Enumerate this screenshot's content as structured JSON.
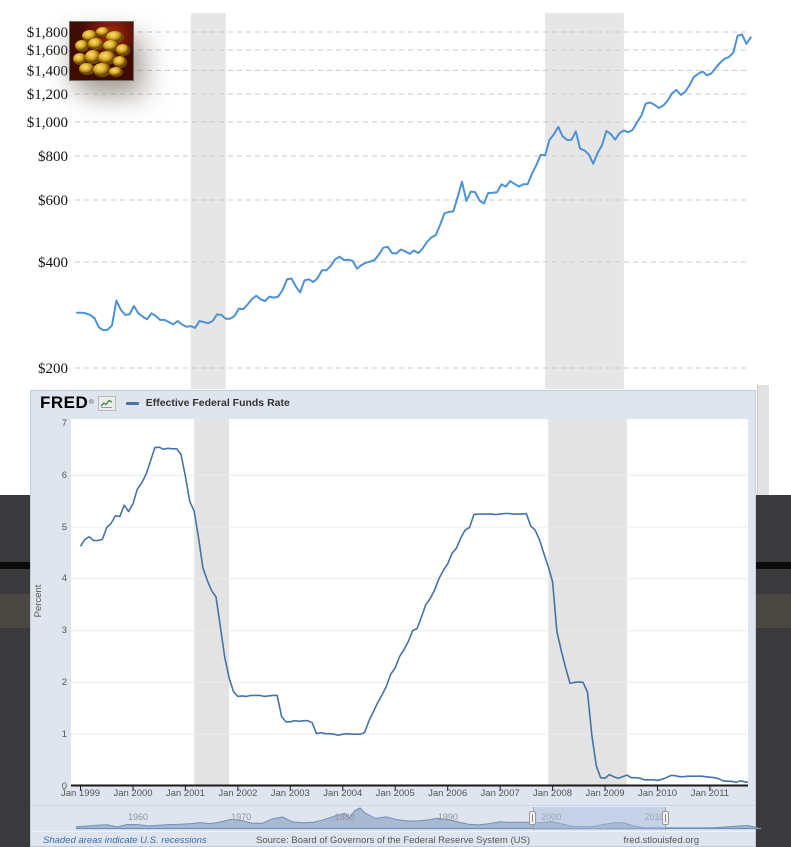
{
  "fred": {
    "logo": "FRED",
    "logo_reg": "®",
    "legend_label": "Effective Federal Funds Rate",
    "ylabel": "Percent",
    "footer": {
      "recession_note": "Shaded areas indicate U.S. recessions",
      "source": "Source: Board of Governors of the Federal Reserve System (US)",
      "site": "fred.stlouisfed.org"
    }
  },
  "colors": {
    "gold_line": "#4f91d6",
    "fred_line": "#4572a7",
    "recession_band_gold": "#e6e6e6",
    "recession_band_fred": "#e3e3e3",
    "gold_grid": "#c9c9c9",
    "fred_grid": "#ececec",
    "axis": "#1a1a1a",
    "panel_bg": "#dfe5ef",
    "selector_fill": "rgba(125,150,185,0.55)",
    "selector_line": "#6f8fb8",
    "logo_icon_line": "#3f8a3f"
  },
  "chart_data": [
    {
      "id": "gold_price",
      "type": "line",
      "description": "Gold price in US dollars per ounce, monthly, Jan 1999 - Nov 2011, log scale",
      "x_start_year": 1999,
      "x_step_months": 1,
      "y_scale": "log",
      "ylim": [
        200,
        2000
      ],
      "y_tick_labels": [
        "$1,800",
        "$1,600",
        "$1,400",
        "$1,200",
        "$1,000",
        "$800",
        "$600",
        "$400",
        "$200"
      ],
      "y_tick_values": [
        1800,
        1600,
        1400,
        1200,
        1000,
        800,
        600,
        400,
        200
      ],
      "grid": "dashed",
      "recessions": [
        [
          2001.167,
          2001.833
        ],
        [
          2007.917,
          2009.417
        ]
      ],
      "values": [
        287,
        287,
        286,
        283,
        277,
        261,
        256,
        257,
        264,
        311,
        293,
        283,
        284,
        300,
        286,
        280,
        275,
        286,
        281,
        274,
        274,
        270,
        266,
        272,
        266,
        262,
        263,
        260,
        272,
        270,
        268,
        272,
        284,
        283,
        276,
        276,
        281,
        295,
        294,
        303,
        314,
        321,
        313,
        310,
        319,
        317,
        319,
        333,
        357,
        359,
        341,
        328,
        355,
        357,
        351,
        360,
        379,
        379,
        390,
        407,
        414,
        405,
        406,
        403,
        383,
        392,
        398,
        401,
        405,
        420,
        439,
        442,
        424,
        423,
        434,
        429,
        422,
        431,
        424,
        437,
        456,
        470,
        477,
        510,
        550,
        555,
        557,
        611,
        676,
        596,
        634,
        632,
        598,
        586,
        628,
        629,
        631,
        665,
        655,
        679,
        667,
        655,
        665,
        665,
        713,
        755,
        806,
        803,
        890,
        922,
        968,
        910,
        889,
        889,
        940,
        839,
        830,
        807,
        761,
        816,
        858,
        943,
        924,
        890,
        929,
        946,
        934,
        949,
        997,
        1043,
        1127,
        1135,
        1118,
        1095,
        1113,
        1149,
        1205,
        1233,
        1193,
        1216,
        1271,
        1342,
        1370,
        1390,
        1356,
        1373,
        1424,
        1473,
        1511,
        1529,
        1573,
        1756,
        1772,
        1666,
        1739
      ]
    },
    {
      "id": "effective_federal_funds_rate",
      "type": "line",
      "legend": "Effective Federal Funds Rate",
      "ylabel": "Percent",
      "ylim": [
        0,
        7
      ],
      "y_ticks": [
        0,
        1,
        2,
        3,
        4,
        5,
        6,
        7
      ],
      "x_tick_labels": [
        "Jan 1999",
        "Jan 2000",
        "Jan 2001",
        "Jan 2002",
        "Jan 2003",
        "Jan 2004",
        "Jan 2005",
        "Jan 2006",
        "Jan 2007",
        "Jan 2008",
        "Jan 2009",
        "Jan 2010",
        "Jan 2011"
      ],
      "x_start_year": 1999,
      "x_step_months": 1,
      "recessions": [
        [
          2001.167,
          2001.833
        ],
        [
          2007.917,
          2009.417
        ]
      ],
      "values": [
        4.63,
        4.76,
        4.81,
        4.74,
        4.74,
        4.76,
        4.99,
        5.07,
        5.22,
        5.2,
        5.42,
        5.3,
        5.45,
        5.73,
        5.85,
        6.02,
        6.27,
        6.53,
        6.54,
        6.5,
        6.52,
        6.51,
        6.51,
        6.4,
        5.98,
        5.49,
        5.31,
        4.8,
        4.21,
        3.97,
        3.77,
        3.65,
        3.07,
        2.49,
        2.09,
        1.82,
        1.73,
        1.74,
        1.73,
        1.75,
        1.75,
        1.75,
        1.73,
        1.74,
        1.75,
        1.75,
        1.34,
        1.24,
        1.24,
        1.26,
        1.25,
        1.26,
        1.26,
        1.22,
        1.01,
        1.03,
        1.01,
        1.01,
        1.0,
        0.98,
        1.0,
        1.01,
        1.0,
        1.0,
        1.0,
        1.03,
        1.26,
        1.43,
        1.61,
        1.76,
        1.93,
        2.16,
        2.28,
        2.5,
        2.63,
        2.79,
        3.0,
        3.04,
        3.26,
        3.5,
        3.62,
        3.78,
        4.0,
        4.16,
        4.29,
        4.49,
        4.59,
        4.79,
        4.94,
        4.99,
        5.24,
        5.25,
        5.25,
        5.25,
        5.25,
        5.24,
        5.25,
        5.26,
        5.26,
        5.25,
        5.25,
        5.25,
        5.26,
        5.02,
        4.94,
        4.76,
        4.49,
        4.24,
        3.94,
        2.98,
        2.61,
        2.28,
        1.98,
        2.0,
        2.01,
        2.0,
        1.81,
        0.97,
        0.39,
        0.16,
        0.15,
        0.22,
        0.18,
        0.15,
        0.18,
        0.21,
        0.16,
        0.16,
        0.15,
        0.12,
        0.12,
        0.12,
        0.11,
        0.13,
        0.16,
        0.2,
        0.2,
        0.18,
        0.18,
        0.19,
        0.19,
        0.19,
        0.19,
        0.18,
        0.17,
        0.16,
        0.14,
        0.1,
        0.09,
        0.09,
        0.07,
        0.1,
        0.08,
        0.07,
        0.08
      ]
    },
    {
      "id": "range_selector",
      "type": "area",
      "description": "Full-history federal funds rate shown in the date-range selector",
      "x_year_labels": [
        "1960",
        "1970",
        "1980",
        "1990",
        "2000",
        "2010"
      ],
      "selected_range_years": [
        1998.25,
        2011.1
      ],
      "points": [
        [
          1954,
          1.0
        ],
        [
          1955,
          1.8
        ],
        [
          1956,
          2.7
        ],
        [
          1957,
          3.1
        ],
        [
          1958,
          1.0
        ],
        [
          1959,
          3.3
        ],
        [
          1960,
          3.2
        ],
        [
          1961,
          2.0
        ],
        [
          1962,
          2.7
        ],
        [
          1963,
          3.2
        ],
        [
          1964,
          3.5
        ],
        [
          1965,
          4.1
        ],
        [
          1966,
          5.1
        ],
        [
          1967,
          4.2
        ],
        [
          1968,
          5.7
        ],
        [
          1969,
          8.2
        ],
        [
          1970,
          7.2
        ],
        [
          1971,
          4.7
        ],
        [
          1972,
          4.4
        ],
        [
          1973,
          8.7
        ],
        [
          1974,
          10.5
        ],
        [
          1975,
          5.8
        ],
        [
          1976,
          5.0
        ],
        [
          1977,
          5.5
        ],
        [
          1978,
          7.9
        ],
        [
          1979,
          11.2
        ],
        [
          1980,
          14.0
        ],
        [
          1980.5,
          9.5
        ],
        [
          1981,
          16.7
        ],
        [
          1981.5,
          19.1
        ],
        [
          1982,
          14.2
        ],
        [
          1983,
          9.1
        ],
        [
          1984,
          10.8
        ],
        [
          1985,
          8.1
        ],
        [
          1986,
          6.8
        ],
        [
          1987,
          6.7
        ],
        [
          1988,
          7.6
        ],
        [
          1989,
          9.2
        ],
        [
          1990,
          8.1
        ],
        [
          1991,
          5.7
        ],
        [
          1992,
          3.5
        ],
        [
          1993,
          3.0
        ],
        [
          1994,
          4.2
        ],
        [
          1995,
          5.8
        ],
        [
          1996,
          5.3
        ],
        [
          1997,
          5.5
        ],
        [
          1998,
          5.4
        ],
        [
          1999,
          5.0
        ],
        [
          2000,
          6.2
        ],
        [
          2001,
          3.9
        ],
        [
          2002,
          1.7
        ],
        [
          2003,
          1.1
        ],
        [
          2004,
          1.3
        ],
        [
          2005,
          3.2
        ],
        [
          2006,
          5.0
        ],
        [
          2007,
          5.0
        ],
        [
          2008,
          1.9
        ],
        [
          2009,
          0.2
        ],
        [
          2010,
          0.2
        ],
        [
          2011,
          0.1
        ],
        [
          2012,
          0.14
        ],
        [
          2013,
          0.11
        ],
        [
          2014,
          0.09
        ],
        [
          2015,
          0.13
        ],
        [
          2016,
          0.4
        ],
        [
          2017,
          1.0
        ],
        [
          2018,
          1.8
        ],
        [
          2019,
          2.4
        ],
        [
          2020,
          0.4
        ]
      ]
    }
  ]
}
